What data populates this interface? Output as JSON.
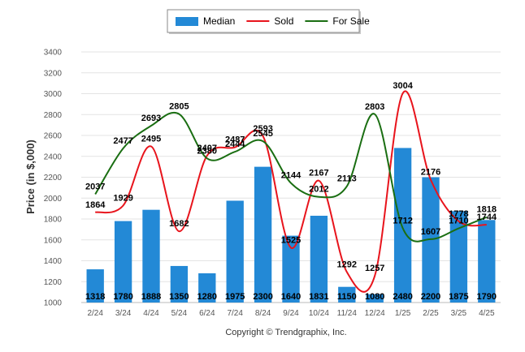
{
  "chart_data": {
    "type": "bar",
    "categories": [
      "2/24",
      "3/24",
      "4/24",
      "5/24",
      "6/24",
      "7/24",
      "8/24",
      "9/24",
      "10/24",
      "11/24",
      "12/24",
      "1/25",
      "2/25",
      "3/25",
      "4/25"
    ],
    "ylabel": "Price (in $,000)",
    "ylim": [
      1000,
      3400
    ],
    "yticks": [
      1000,
      1200,
      1400,
      1600,
      1800,
      2000,
      2200,
      2400,
      2600,
      2800,
      3000,
      3200,
      3400
    ],
    "grid": true,
    "legend_placement": "top-center",
    "series": [
      {
        "name": "Median",
        "kind": "bar",
        "color": "#2389d6",
        "values": [
          1318,
          1780,
          1888,
          1350,
          1280,
          1975,
          2300,
          1640,
          1831,
          1150,
          1080,
          2480,
          2200,
          1875,
          1790
        ]
      },
      {
        "name": "Sold",
        "kind": "line",
        "color": "#e8141c",
        "values": [
          1864,
          1929,
          2495,
          1682,
          2407,
          2487,
          2593,
          1525,
          2167,
          1292,
          1257,
          3004,
          2176,
          1778,
          1744
        ]
      },
      {
        "name": "For Sale",
        "kind": "line",
        "color": "#1a6e12",
        "values": [
          2037,
          2477,
          2693,
          2805,
          2380,
          2444,
          2545,
          2144,
          2012,
          2113,
          2803,
          1712,
          1607,
          1710,
          1818
        ]
      }
    ]
  },
  "copyright": "Copyright © Trendgraphix, Inc."
}
